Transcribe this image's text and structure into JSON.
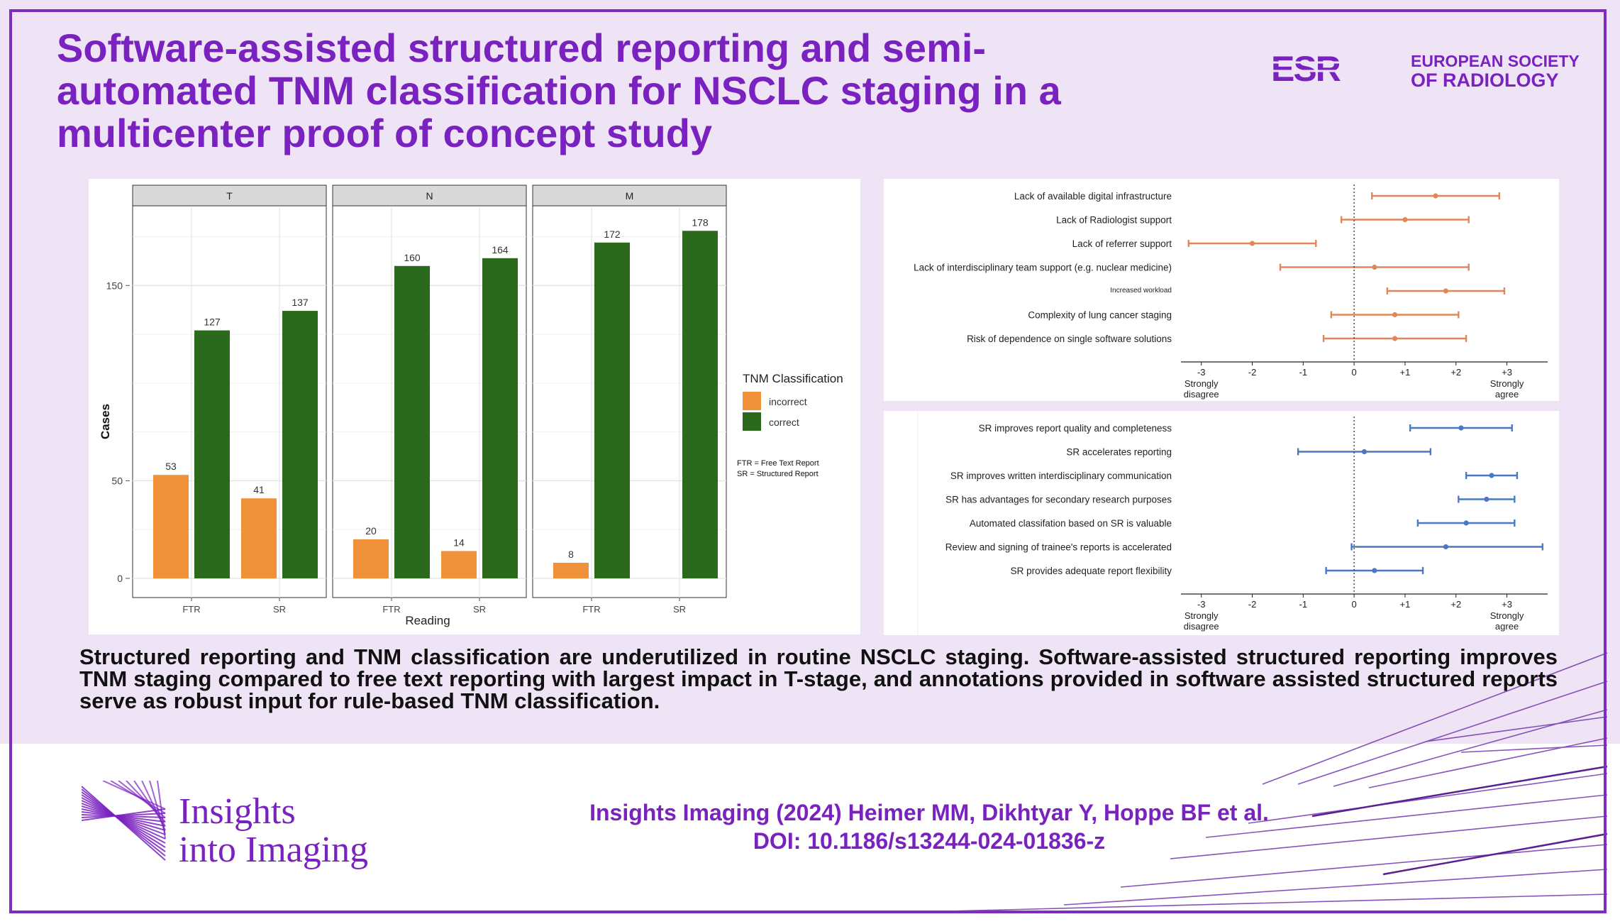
{
  "title": "Software-assisted structured reporting and semi-automated TNM classification for NSCLC staging in a multicenter proof of concept study",
  "esr_logo": {
    "mark": "ESR",
    "line1": "EUROPEAN SOCIETY",
    "line2": "OF RADIOLOGY"
  },
  "colors": {
    "purple": "#7a22bf",
    "incorrect": "#f0923a",
    "correct": "#2b6a1c",
    "survey_1": "#e0875a",
    "survey_2": "#4a78c4"
  },
  "chart_data": [
    {
      "type": "bar",
      "title": "",
      "xlabel": "Reading",
      "ylabel": "Cases",
      "ylim": [
        0,
        185
      ],
      "yticks": [
        0,
        50,
        150
      ],
      "facets": [
        "T",
        "N",
        "M"
      ],
      "categories": [
        "FTR",
        "SR"
      ],
      "legend": {
        "title": "TNM Classification",
        "entries": [
          "incorrect",
          "correct"
        ],
        "placement": "right"
      },
      "note": [
        "FTR = Free Text Report",
        "SR = Structured Report"
      ],
      "series": [
        {
          "name": "incorrect",
          "values": {
            "T": [
              53,
              41
            ],
            "N": [
              20,
              14
            ],
            "M": [
              8,
              null
            ]
          }
        },
        {
          "name": "correct",
          "values": {
            "T": [
              127,
              137
            ],
            "N": [
              160,
              164
            ],
            "M": [
              172,
              178
            ]
          }
        }
      ],
      "grid": true
    },
    {
      "type": "scatter",
      "subtype": "point-range",
      "xlim": [
        -3.4,
        3.8
      ],
      "xticks": [
        "-3",
        "-2",
        "-1",
        "0",
        "+1",
        "+2",
        "+3"
      ],
      "xtick_values": [
        -3,
        -2,
        -1,
        0,
        1,
        2,
        3
      ],
      "xaxis_end_labels": {
        "left": [
          "Strongly",
          "disagree"
        ],
        "right": [
          "Strongly",
          "agree"
        ]
      },
      "reference_line": 0,
      "items": [
        {
          "label": "Lack of available digital infrastructure",
          "mean": 1.6,
          "low": 0.35,
          "high": 2.85
        },
        {
          "label": "Lack of Radiologist support",
          "mean": 1.0,
          "low": -0.25,
          "high": 2.25
        },
        {
          "label": "Lack of referrer support",
          "mean": -2.0,
          "low": -3.25,
          "high": -0.75
        },
        {
          "label": "Lack of interdisciplinary team support (e.g. nuclear medicine)",
          "mean": 0.4,
          "low": -1.45,
          "high": 2.25
        },
        {
          "label": "Increased workload",
          "mean": 1.8,
          "low": 0.65,
          "high": 2.95
        },
        {
          "label": "Complexity of lung cancer staging",
          "mean": 0.8,
          "low": -0.45,
          "high": 2.05
        },
        {
          "label": "Risk of dependence on single software solutions",
          "mean": 0.8,
          "low": -0.6,
          "high": 2.2
        }
      ]
    },
    {
      "type": "scatter",
      "subtype": "point-range",
      "xlim": [
        -3.4,
        3.8
      ],
      "xticks": [
        "-3",
        "-2",
        "-1",
        "0",
        "+1",
        "+2",
        "+3"
      ],
      "xtick_values": [
        -3,
        -2,
        -1,
        0,
        1,
        2,
        3
      ],
      "xaxis_end_labels": {
        "left": [
          "Strongly",
          "disagree"
        ],
        "right": [
          "Strongly",
          "agree"
        ]
      },
      "reference_line": 0,
      "items": [
        {
          "label": "SR improves report quality and completeness",
          "mean": 2.1,
          "low": 1.1,
          "high": 3.1
        },
        {
          "label": "SR accelerates reporting",
          "mean": 0.2,
          "low": -1.1,
          "high": 1.5
        },
        {
          "label": "SR improves written interdisciplinary communication",
          "mean": 2.7,
          "low": 2.2,
          "high": 3.2
        },
        {
          "label": "SR has advantages for secondary research purposes",
          "mean": 2.6,
          "low": 2.05,
          "high": 3.15
        },
        {
          "label": "Automated classifation based on SR is valuable",
          "mean": 2.2,
          "low": 1.25,
          "high": 3.15
        },
        {
          "label": "Review and signing of trainee's reports is accelerated",
          "mean": 1.8,
          "low": -0.05,
          "high": 3.7
        },
        {
          "label": "SR provides adequate report flexibility",
          "mean": 0.4,
          "low": -0.55,
          "high": 1.35
        }
      ]
    }
  ],
  "conclusion": "Structured reporting and TNM classification are underutilized in routine NSCLC staging. Software-assisted structured reporting improves TNM staging compared to free text reporting with largest impact in T-stage, and annotations provided in software assisted structured reports serve as robust input for rule-based TNM classification.",
  "journal_logo": {
    "line1": "Insights",
    "line2": "into Imaging"
  },
  "citation": {
    "line1": "Insights Imaging (2024) Heimer MM, Dikhtyar Y, Hoppe BF et al.",
    "line2": "DOI: 10.1186/s13244-024-01836-z"
  }
}
